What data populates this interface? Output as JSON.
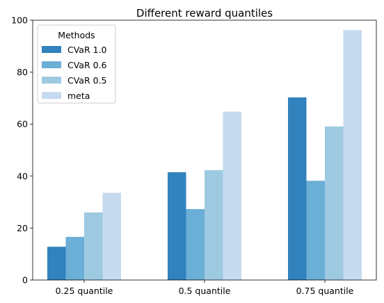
{
  "chart_data": {
    "type": "bar",
    "title": "Different reward quantiles",
    "xlabel": "",
    "ylabel": "",
    "categories": [
      "0.25 quantile",
      "0.5 quantile",
      "0.75 quantile"
    ],
    "ylim": [
      0,
      100
    ],
    "yticks": [
      0,
      20,
      40,
      60,
      80,
      100
    ],
    "grid": false,
    "legend": {
      "title": "Methods",
      "placement": "top-left"
    },
    "series": [
      {
        "name": "CVaR 1.0",
        "color": "#3182bd",
        "values": [
          12.8,
          41.5,
          70.3
        ]
      },
      {
        "name": "CVaR 0.6",
        "color": "#6baed6",
        "values": [
          16.6,
          27.3,
          38.2
        ]
      },
      {
        "name": "CVaR 0.5",
        "color": "#9ecae1",
        "values": [
          26.0,
          42.3,
          59.1
        ]
      },
      {
        "name": "meta",
        "color": "#c6dbef",
        "values": [
          33.6,
          64.8,
          96.2
        ]
      }
    ]
  }
}
